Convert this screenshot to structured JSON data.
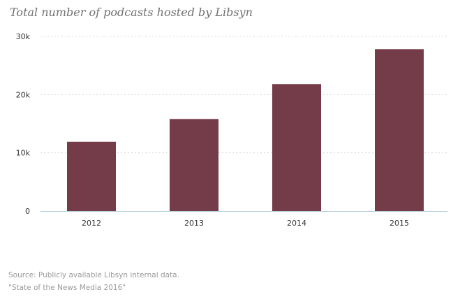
{
  "chart_data": {
    "type": "bar",
    "title": "Total number of podcasts hosted by Libsyn",
    "categories": [
      "2012",
      "2013",
      "2014",
      "2015"
    ],
    "values": [
      11900,
      15800,
      21800,
      27800
    ],
    "ylim": [
      0,
      30000
    ],
    "yticks": [
      {
        "value": 0,
        "label": "0"
      },
      {
        "value": 10000,
        "label": "10k"
      },
      {
        "value": 20000,
        "label": "20k"
      },
      {
        "value": 30000,
        "label": "30k"
      }
    ],
    "grid": true,
    "legend": "none",
    "colors": {
      "bar": "#743b48",
      "axis": "#a9c6d6",
      "grid": "#dcdcdc"
    }
  },
  "source": {
    "line1": "Source: Publicly available Libsyn internal data.",
    "line2": "\"State of the News Media 2016\""
  }
}
